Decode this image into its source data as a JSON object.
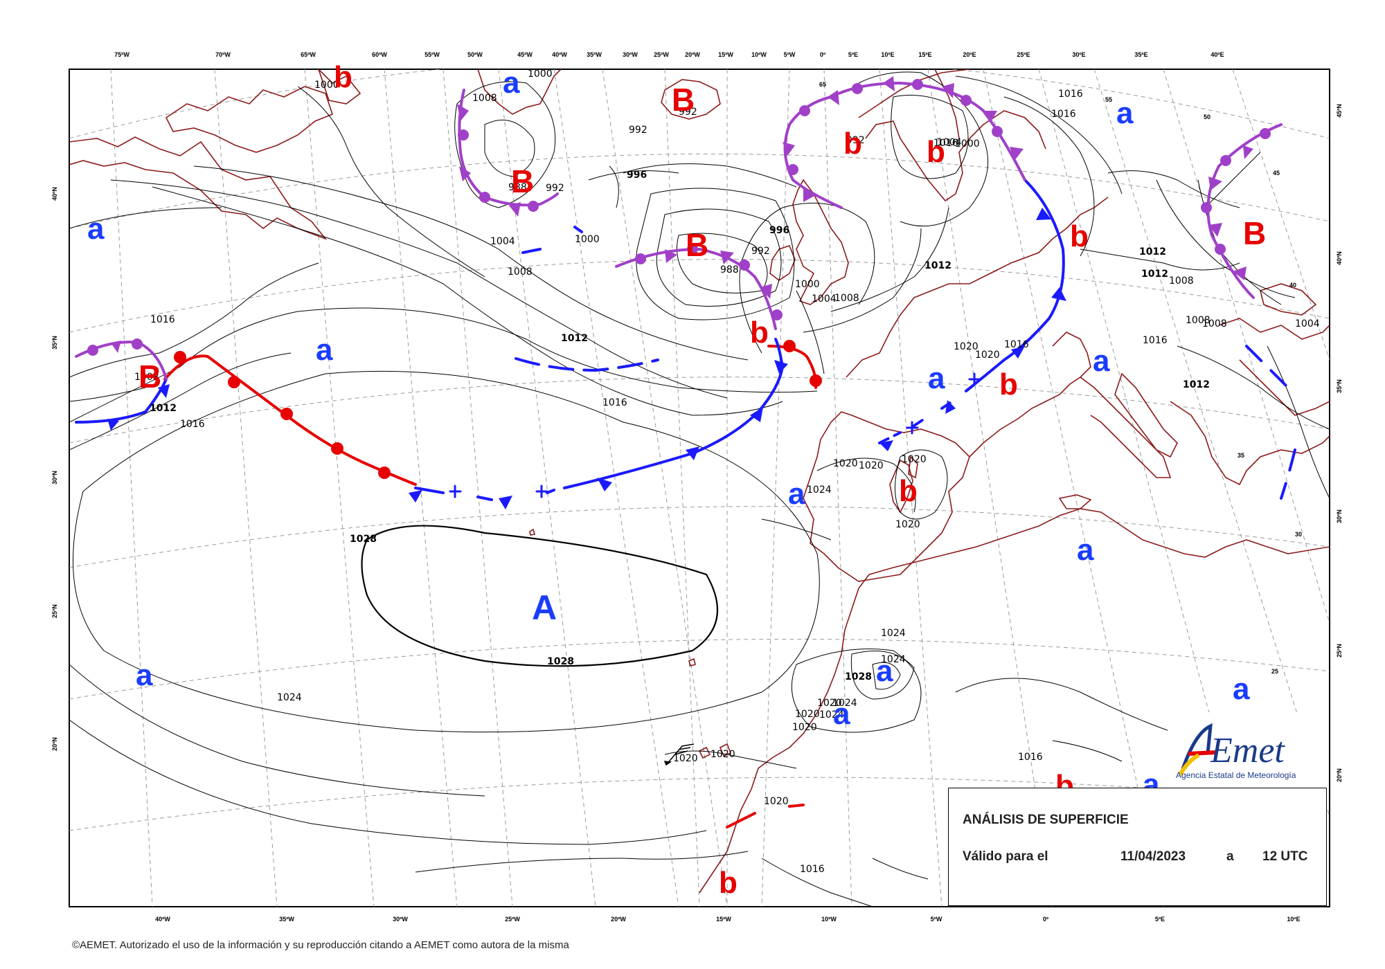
{
  "top_lon_labels": [
    "75ºW",
    "70ºW",
    "65ºW",
    "60ºW",
    "55ºW",
    "50ºW",
    "45ºW",
    "40ºW",
    "35ºW",
    "30ºW",
    "25ºW",
    "20ºW",
    "15ºW",
    "10ºW",
    "5ºW",
    "0º",
    "5ºE",
    "10ºE",
    "15ºE",
    "20ºE",
    "25ºE",
    "30ºE",
    "35ºE",
    "40ºE"
  ],
  "bottom_lon_labels": [
    "40ºW",
    "35ºW",
    "30ºW",
    "25ºW",
    "20ºW",
    "15ºW",
    "10ºW",
    "5ºW",
    "0º",
    "5ºE",
    "10ºE"
  ],
  "left_lat_labels": [
    "40ºN",
    "35ºN",
    "30ºN",
    "25ºN",
    "20ºN"
  ],
  "right_lat_labels": [
    "45ºN",
    "40ºN",
    "35ºN",
    "30ºN",
    "25ºN",
    "20ºN"
  ],
  "inner_grid_labels": [
    "65",
    "55",
    "50",
    "45",
    "40",
    "35",
    "30",
    "25"
  ],
  "isobar_labels": [
    "1000",
    "1004",
    "1008",
    "1012",
    "1016",
    "1020",
    "1024",
    "1028",
    "988",
    "992",
    "996"
  ],
  "pressure_centers": {
    "high_main": "A",
    "low_main": "B",
    "high_relative": "a",
    "low_relative": "b"
  },
  "info_box": {
    "title": "ANÁLISIS DE SUPERFICIE",
    "valid_label": "Válido para el",
    "date": "11/04/2023",
    "a": "a",
    "time": "12 UTC"
  },
  "logo": {
    "name": "AEmet",
    "caption": "Agencia Estatal de Meteorología"
  },
  "copyright": "©AEMET. Autorizado el uso de la información y su reproducción citando a AEMET como autora de la misma",
  "colors": {
    "warm_front": "#e60000",
    "cold_front": "#1a1aff",
    "occluded_front": "#a040c8",
    "coast": "#8b1a1a",
    "high_letter": "#1a3cff",
    "low_letter": "#e60000"
  }
}
